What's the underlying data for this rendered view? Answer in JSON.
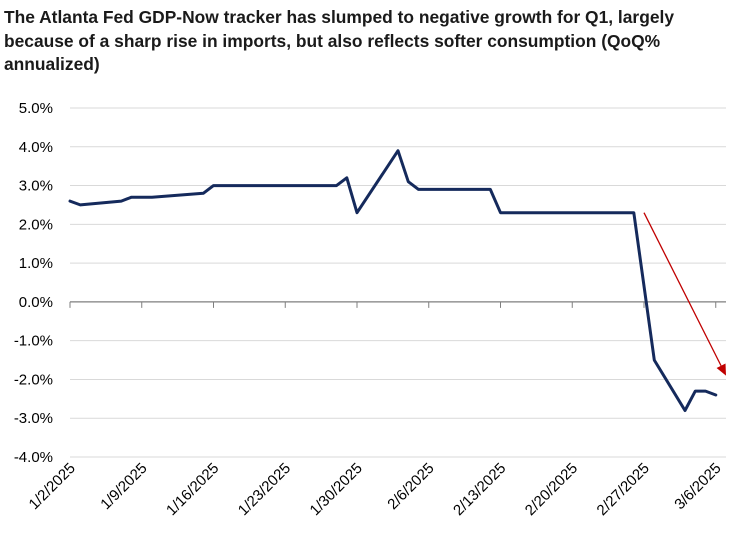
{
  "chart_data": {
    "type": "line",
    "title": "The Atlanta Fed GDP-Now tracker has slumped to negative growth for Q1, largely because of a sharp rise in imports, but also reflects softer consumption  (QoQ% annualized)",
    "xlabel": "",
    "ylabel": "",
    "x_type": "date",
    "xlim": [
      "2025-01-02",
      "2025-03-07"
    ],
    "ylim": [
      -4.0,
      5.0
    ],
    "ytick_step": 1.0,
    "ytick_labels": [
      "5.0%",
      "4.0%",
      "3.0%",
      "2.0%",
      "1.0%",
      "0.0%",
      "-1.0%",
      "-2.0%",
      "-3.0%",
      "-4.0%"
    ],
    "xtick_labels": [
      {
        "date": "2025-01-02",
        "label": "1/2/2025"
      },
      {
        "date": "2025-01-09",
        "label": "1/9/2025"
      },
      {
        "date": "2025-01-16",
        "label": "1/16/2025"
      },
      {
        "date": "2025-01-23",
        "label": "1/23/2025"
      },
      {
        "date": "2025-01-30",
        "label": "1/30/2025"
      },
      {
        "date": "2025-02-06",
        "label": "2/6/2025"
      },
      {
        "date": "2025-02-13",
        "label": "2/13/2025"
      },
      {
        "date": "2025-02-20",
        "label": "2/20/2025"
      },
      {
        "date": "2025-02-27",
        "label": "2/27/2025"
      },
      {
        "date": "2025-03-06",
        "label": "3/6/2025"
      }
    ],
    "grid": true,
    "legend": "none",
    "series": [
      {
        "color": "#152a5c",
        "x": [
          "2025-01-02",
          "2025-01-03",
          "2025-01-07",
          "2025-01-08",
          "2025-01-10",
          "2025-01-15",
          "2025-01-16",
          "2025-01-17",
          "2025-01-28",
          "2025-01-29",
          "2025-01-30",
          "2025-02-03",
          "2025-02-04",
          "2025-02-05",
          "2025-02-06",
          "2025-02-07",
          "2025-02-12",
          "2025-02-13",
          "2025-02-26",
          "2025-02-28",
          "2025-03-03",
          "2025-03-04",
          "2025-03-05",
          "2025-03-06"
        ],
        "y": [
          2.6,
          2.5,
          2.6,
          2.7,
          2.7,
          2.8,
          3.0,
          3.0,
          3.0,
          3.2,
          2.3,
          3.9,
          3.1,
          2.9,
          2.9,
          2.9,
          2.9,
          2.3,
          2.3,
          -1.5,
          -2.8,
          -2.3,
          -2.3,
          -2.4
        ]
      }
    ],
    "annotations": [
      {
        "type": "arrow",
        "color": "#c00000",
        "from": {
          "x": "2025-02-27",
          "y": 2.3
        },
        "to": {
          "x": "2025-03-07",
          "y": -1.9
        }
      }
    ]
  }
}
